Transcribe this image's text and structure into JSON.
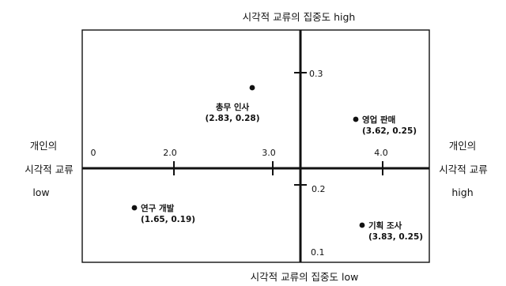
{
  "chart_data": {
    "type": "scatter",
    "title_top": "시각적 교류의 집중도 high",
    "title_bottom": "시각적 교류의 집중도 low",
    "left_label": [
      "개인의",
      "시각적 교류",
      "low"
    ],
    "right_label": [
      "개인의",
      "시각적 교류",
      "high"
    ],
    "x_ticks": [
      "0",
      "2.0",
      "3.0",
      "4.0"
    ],
    "y_ticks": [
      "0.3",
      "0.2",
      "0.1"
    ],
    "x_axis_cross_y": 0.225,
    "y_axis_cross_x": 3.35,
    "points": [
      {
        "name": "총무 인사",
        "coords": "(2.83, 0.28)",
        "x": 2.83,
        "y": 0.28
      },
      {
        "name": "영업 판매",
        "coords": "(3.62, 0.25)",
        "x": 3.62,
        "y": 0.25
      },
      {
        "name": "연구 개발",
        "coords": "(1.65, 0.19)",
        "x": 1.65,
        "y": 0.19
      },
      {
        "name": "기획 조사",
        "coords": "(3.83, 0.25)",
        "x": 3.83,
        "y": 0.25
      }
    ],
    "colors": {
      "ink": "#111111",
      "background": "#ffffff"
    }
  }
}
